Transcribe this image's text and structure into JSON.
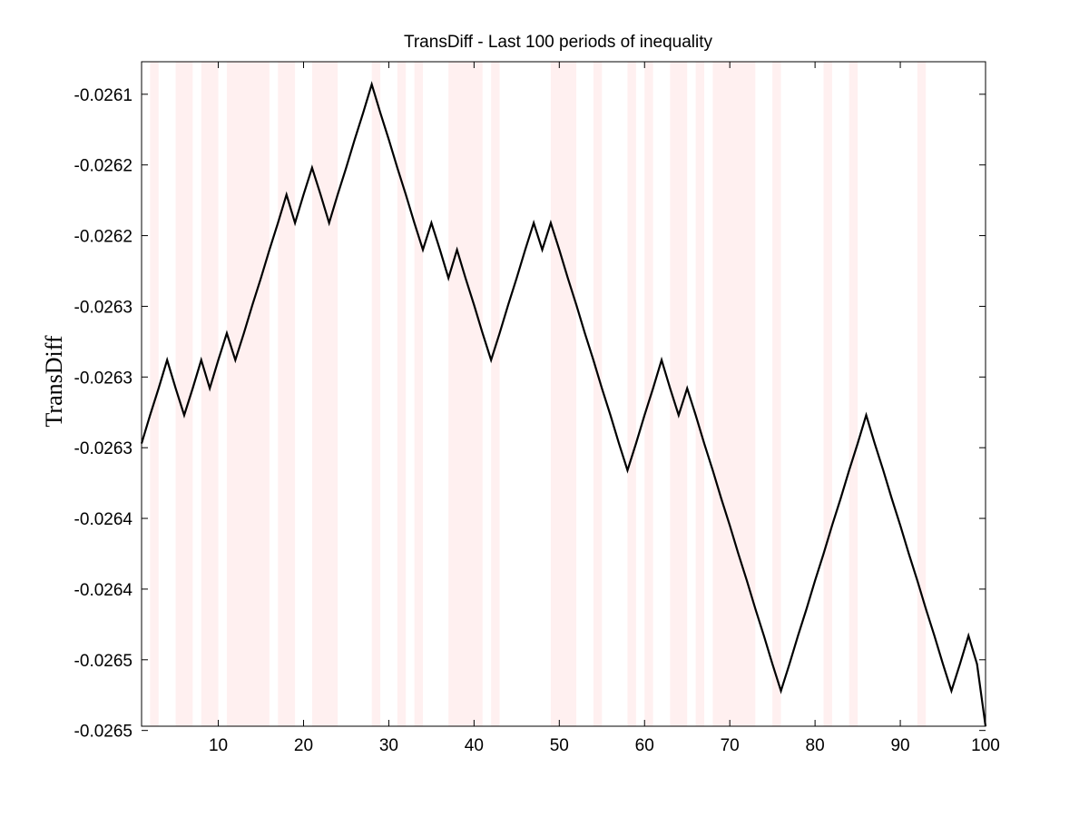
{
  "chart_data": {
    "type": "line",
    "title": "TransDiff - Last 100 periods of inequality",
    "xlabel": "",
    "ylabel": "TransDiff",
    "xlim": [
      1,
      100
    ],
    "ylim": [
      -0.026527,
      -0.026057
    ],
    "x_ticks": [
      10,
      20,
      30,
      40,
      50,
      60,
      70,
      80,
      90,
      100
    ],
    "x_tick_labels": [
      "10",
      "20",
      "30",
      "40",
      "50",
      "60",
      "70",
      "80",
      "90",
      "100"
    ],
    "y_ticks": [
      -0.02608,
      -0.02613,
      -0.02618,
      -0.02623,
      -0.02628,
      -0.02633,
      -0.02638,
      -0.02643,
      -0.02648,
      -0.02653
    ],
    "y_tick_labels": [
      "-0.0261",
      "-0.0262",
      "-0.0262",
      "-0.0263",
      "-0.0263",
      "-0.0263",
      "-0.0264",
      "-0.0264",
      "-0.0265",
      "-0.0265"
    ],
    "grid": false,
    "series": [
      {
        "name": "TransDiff",
        "color": "#000000",
        "x": [
          1,
          2,
          3,
          4,
          5,
          6,
          7,
          8,
          9,
          10,
          11,
          12,
          13,
          14,
          15,
          16,
          17,
          18,
          19,
          20,
          21,
          22,
          23,
          24,
          25,
          26,
          27,
          28,
          29,
          30,
          31,
          32,
          33,
          34,
          35,
          36,
          37,
          38,
          39,
          40,
          41,
          42,
          43,
          44,
          45,
          46,
          47,
          48,
          49,
          50,
          51,
          52,
          53,
          54,
          55,
          56,
          57,
          58,
          59,
          60,
          61,
          62,
          63,
          64,
          65,
          66,
          67,
          68,
          69,
          70,
          71,
          72,
          73,
          74,
          75,
          76,
          77,
          78,
          79,
          80,
          81,
          82,
          83,
          84,
          85,
          86,
          87,
          88,
          89,
          90,
          91,
          92,
          93,
          94,
          95,
          96,
          97,
          98,
          99,
          100
        ],
        "values": [
          -0.026327,
          -0.026307,
          -0.026288,
          -0.026268,
          -0.026288,
          -0.026307,
          -0.026288,
          -0.026268,
          -0.026288,
          -0.026268,
          -0.026249,
          -0.026268,
          -0.026249,
          -0.026229,
          -0.02621,
          -0.02619,
          -0.026171,
          -0.026151,
          -0.026171,
          -0.026151,
          -0.026132,
          -0.026151,
          -0.026171,
          -0.026151,
          -0.026132,
          -0.026112,
          -0.026093,
          -0.026073,
          -0.026093,
          -0.026112,
          -0.026132,
          -0.026151,
          -0.026171,
          -0.02619,
          -0.026171,
          -0.02619,
          -0.02621,
          -0.02619,
          -0.02621,
          -0.026229,
          -0.026249,
          -0.026268,
          -0.026249,
          -0.026229,
          -0.02621,
          -0.02619,
          -0.026171,
          -0.02619,
          -0.026171,
          -0.02619,
          -0.02621,
          -0.026229,
          -0.026249,
          -0.026268,
          -0.026288,
          -0.026307,
          -0.026327,
          -0.026346,
          -0.026327,
          -0.026307,
          -0.026288,
          -0.026268,
          -0.026288,
          -0.026307,
          -0.026288,
          -0.026307,
          -0.026327,
          -0.026346,
          -0.026366,
          -0.026385,
          -0.026405,
          -0.026424,
          -0.026444,
          -0.026463,
          -0.026483,
          -0.026502,
          -0.026483,
          -0.026463,
          -0.026444,
          -0.026424,
          -0.026405,
          -0.026385,
          -0.026366,
          -0.026346,
          -0.026327,
          -0.026307,
          -0.026327,
          -0.026346,
          -0.026366,
          -0.026385,
          -0.026405,
          -0.026424,
          -0.026444,
          -0.026463,
          -0.026483,
          -0.026502,
          -0.026483,
          -0.026463,
          -0.026483,
          -0.026527
        ]
      }
    ],
    "shaded_regions": [
      [
        2,
        3
      ],
      [
        5,
        7
      ],
      [
        8,
        10
      ],
      [
        11,
        16
      ],
      [
        17,
        19
      ],
      [
        21,
        24
      ],
      [
        28,
        29
      ],
      [
        31,
        32
      ],
      [
        33,
        34
      ],
      [
        37,
        41
      ],
      [
        42,
        43
      ],
      [
        49,
        52
      ],
      [
        54,
        55
      ],
      [
        58,
        59
      ],
      [
        60,
        61
      ],
      [
        63,
        65
      ],
      [
        66,
        67
      ],
      [
        68,
        73
      ],
      [
        75,
        76
      ],
      [
        81,
        82
      ],
      [
        84,
        85
      ],
      [
        92,
        93
      ]
    ],
    "shade_color": "#fff0f0"
  }
}
